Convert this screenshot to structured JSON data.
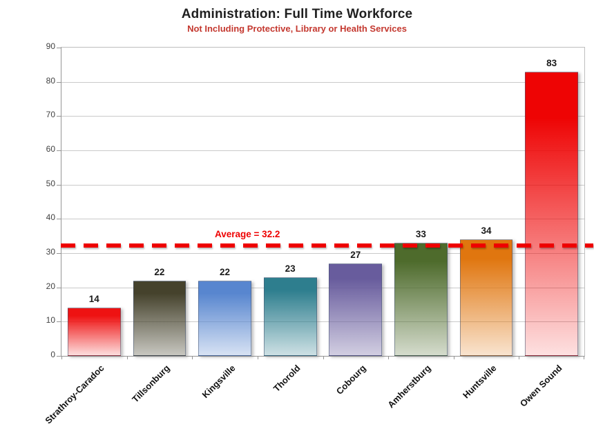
{
  "chart_data": {
    "type": "bar",
    "title": "Administration: Full Time Workforce",
    "subtitle": "Not Including Protective, Library or Health Services",
    "categories": [
      "Strathroy-Caradoc",
      "Tillsonburg",
      "Kingsville",
      "Thorold",
      "Cobourg",
      "Amherstburg",
      "Huntsville",
      "Owen Sound"
    ],
    "values": [
      14,
      22,
      22,
      23,
      27,
      33,
      34,
      83
    ],
    "value_labels": [
      "14",
      "22",
      "22",
      "23",
      "27",
      "33",
      "34",
      "83"
    ],
    "bar_colors": [
      {
        "top": "#ee1212",
        "fade": "rgba(238,18,18,0.14)"
      },
      {
        "top": "#45422c",
        "fade": "rgba(69,66,44,0.30)"
      },
      {
        "top": "#5886cf",
        "fade": "rgba(88,134,207,0.24)"
      },
      {
        "top": "#2e7e8e",
        "fade": "rgba(46,126,142,0.24)"
      },
      {
        "top": "#685c9d",
        "fade": "rgba(104,92,157,0.30)"
      },
      {
        "top": "#4e6b2c",
        "fade": "rgba(78,107,44,0.24)"
      },
      {
        "top": "#e0760f",
        "fade": "rgba(224,118,15,0.20)"
      },
      {
        "top": "#ee0404",
        "fade": "rgba(238,4,4,0.12)"
      }
    ],
    "xlabel": "",
    "ylabel": "",
    "ylim": [
      0,
      90
    ],
    "yticks": [
      0,
      10,
      20,
      30,
      40,
      50,
      60,
      70,
      80,
      90
    ],
    "grid": true,
    "legend": "none",
    "average": {
      "value": 32.2,
      "label": "Average = 32.2",
      "line_color": "#ee0000",
      "line_style": "dashed"
    },
    "colors": {
      "subtitle_red": "#c4382f",
      "accent_red": "#ee0000",
      "gridline_gray": "#c9c9c9",
      "axis_gray": "#949494"
    }
  }
}
